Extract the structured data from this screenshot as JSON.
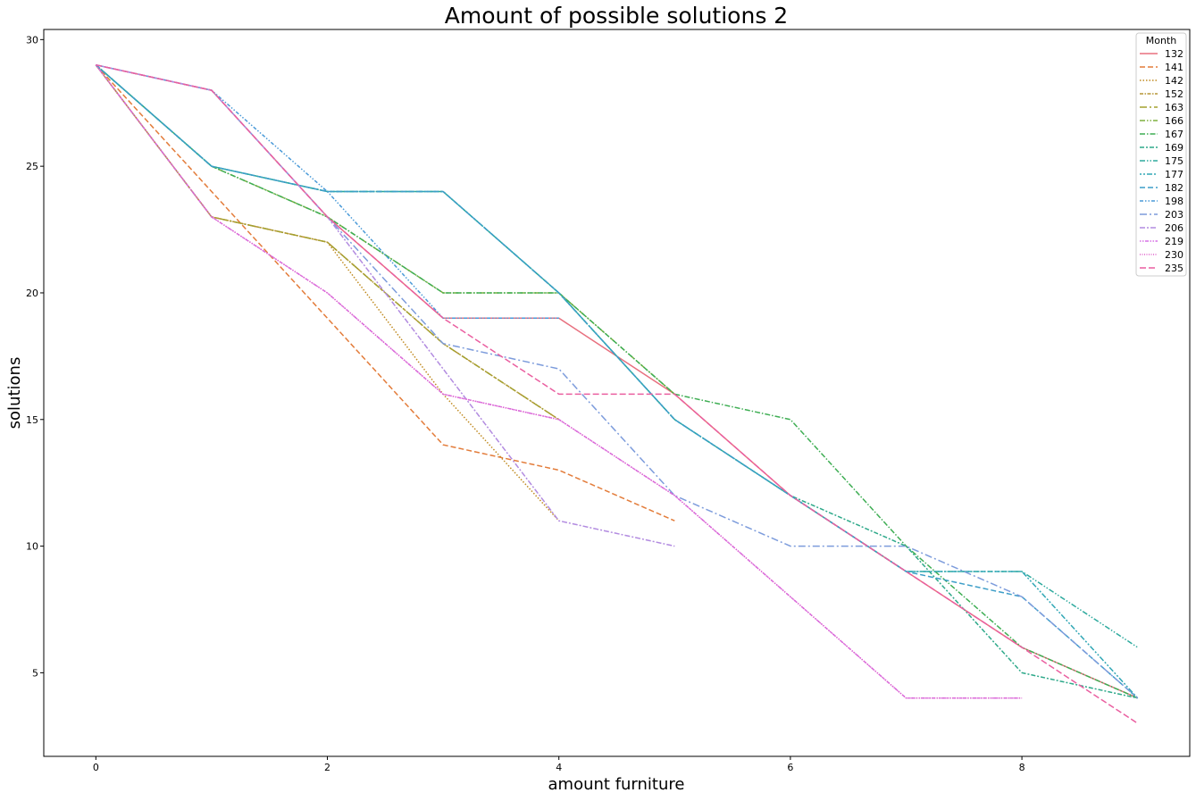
{
  "chart_data": {
    "type": "line",
    "title": "Amount of possible solutions 2",
    "xlabel": "amount furniture",
    "ylabel": "solutions",
    "xlim": [
      -0.45,
      9.45
    ],
    "ylim": [
      1.7,
      30.4
    ],
    "xticks": [
      0,
      2,
      4,
      6,
      8
    ],
    "yticks": [
      5,
      10,
      15,
      20,
      25,
      30
    ],
    "grid": false,
    "legend": {
      "title": "Month",
      "position": "top-right"
    },
    "series": [
      {
        "name": "132",
        "color": "#e8707f",
        "dash": "",
        "x": [
          0,
          1,
          2,
          3,
          4,
          5,
          6,
          7,
          8,
          9
        ],
        "y": [
          29,
          28,
          23,
          19,
          19,
          16,
          12,
          9,
          6,
          4
        ]
      },
      {
        "name": "141",
        "color": "#e37c3a",
        "dash": "6,3",
        "x": [
          0,
          1,
          2,
          3,
          4,
          5
        ],
        "y": [
          29,
          24,
          19,
          14,
          13,
          11
        ]
      },
      {
        "name": "142",
        "color": "#c08a20",
        "dash": "1.5,2",
        "x": [
          0,
          1,
          2,
          3,
          4
        ],
        "y": [
          29,
          23,
          22,
          16,
          11
        ]
      },
      {
        "name": "152",
        "color": "#b59535",
        "dash": "4,1.5,1.5,1.5",
        "x": [
          0,
          1,
          2,
          3,
          4
        ],
        "y": [
          29,
          23,
          22,
          18,
          15
        ]
      },
      {
        "name": "163",
        "color": "#a4a02f",
        "dash": "8,3,2,3",
        "x": [
          0,
          1,
          2,
          3,
          4
        ],
        "y": [
          29,
          23,
          22,
          18,
          15
        ]
      },
      {
        "name": "166",
        "color": "#7fb03e",
        "dash": "6,2,1.5,2,1.5,2",
        "x": [
          0,
          1,
          2,
          3,
          4,
          5
        ],
        "y": [
          29,
          25,
          23,
          20,
          20,
          16
        ]
      },
      {
        "name": "167",
        "color": "#3fae54",
        "dash": "6,2,1.5,2",
        "x": [
          0,
          1,
          2,
          3,
          4,
          5,
          6,
          7,
          8,
          9
        ],
        "y": [
          29,
          25,
          23,
          20,
          20,
          16,
          15,
          10,
          6,
          4
        ]
      },
      {
        "name": "169",
        "color": "#2ea98a",
        "dash": "5,2,2,2",
        "x": [
          0,
          1,
          2,
          3,
          4,
          5,
          6,
          7,
          8,
          9
        ],
        "y": [
          29,
          25,
          24,
          24,
          20,
          15,
          12,
          10,
          5,
          4
        ]
      },
      {
        "name": "175",
        "color": "#2eaa9e",
        "dash": "6,2,1.5,2,1.5,2",
        "x": [
          0,
          1,
          2,
          3,
          4,
          5,
          6,
          7,
          8,
          9
        ],
        "y": [
          29,
          25,
          24,
          24,
          20,
          15,
          12,
          9,
          9,
          6
        ]
      },
      {
        "name": "177",
        "color": "#30a7b5",
        "dash": "2,2,2,2,6,2",
        "x": [
          0,
          1,
          2,
          3,
          4,
          5,
          6,
          7,
          8,
          9
        ],
        "y": [
          29,
          25,
          24,
          24,
          20,
          15,
          12,
          9,
          9,
          4
        ]
      },
      {
        "name": "182",
        "color": "#3d9ec8",
        "dash": "6,3",
        "x": [
          0,
          1,
          2,
          3,
          4,
          5,
          6,
          7,
          8,
          9
        ],
        "y": [
          29,
          25,
          24,
          24,
          20,
          15,
          12,
          9,
          8,
          4
        ]
      },
      {
        "name": "198",
        "color": "#4a9ad8",
        "dash": "4,2,1.5,2,1.5,2",
        "x": [
          0,
          1,
          2,
          3,
          4
        ],
        "y": [
          29,
          28,
          24,
          19,
          19
        ]
      },
      {
        "name": "203",
        "color": "#7d9cdc",
        "dash": "8,3,2,3",
        "x": [
          0,
          1,
          2,
          3,
          4,
          5,
          6,
          7,
          8,
          9
        ],
        "y": [
          29,
          28,
          23,
          18,
          17,
          12,
          10,
          10,
          8,
          4
        ]
      },
      {
        "name": "206",
        "color": "#b28be0",
        "dash": "6,2,2,2",
        "x": [
          0,
          1,
          2,
          3,
          4,
          5
        ],
        "y": [
          29,
          28,
          23,
          17,
          11,
          10
        ]
      },
      {
        "name": "219",
        "color": "#d771e5",
        "dash": "1.5,1.5,1.5,1.5,4,1.5",
        "x": [
          0,
          1,
          2,
          3,
          4,
          5,
          6,
          7,
          8
        ],
        "y": [
          29,
          23,
          20,
          16,
          15,
          12,
          8,
          4,
          4
        ]
      },
      {
        "name": "230",
        "color": "#df5fc9",
        "dash": "1,1.5",
        "x": [
          0,
          1,
          2,
          3,
          4,
          5,
          6,
          7,
          8
        ],
        "y": [
          29,
          23,
          20,
          16,
          15,
          12,
          8,
          4,
          4
        ]
      },
      {
        "name": "235",
        "color": "#ea5fa0",
        "dash": "7,3",
        "x": [
          0,
          1,
          2,
          3,
          4,
          5,
          6,
          7,
          8,
          9
        ],
        "y": [
          29,
          28,
          23,
          19,
          16,
          16,
          12,
          9,
          6,
          3
        ]
      }
    ]
  }
}
